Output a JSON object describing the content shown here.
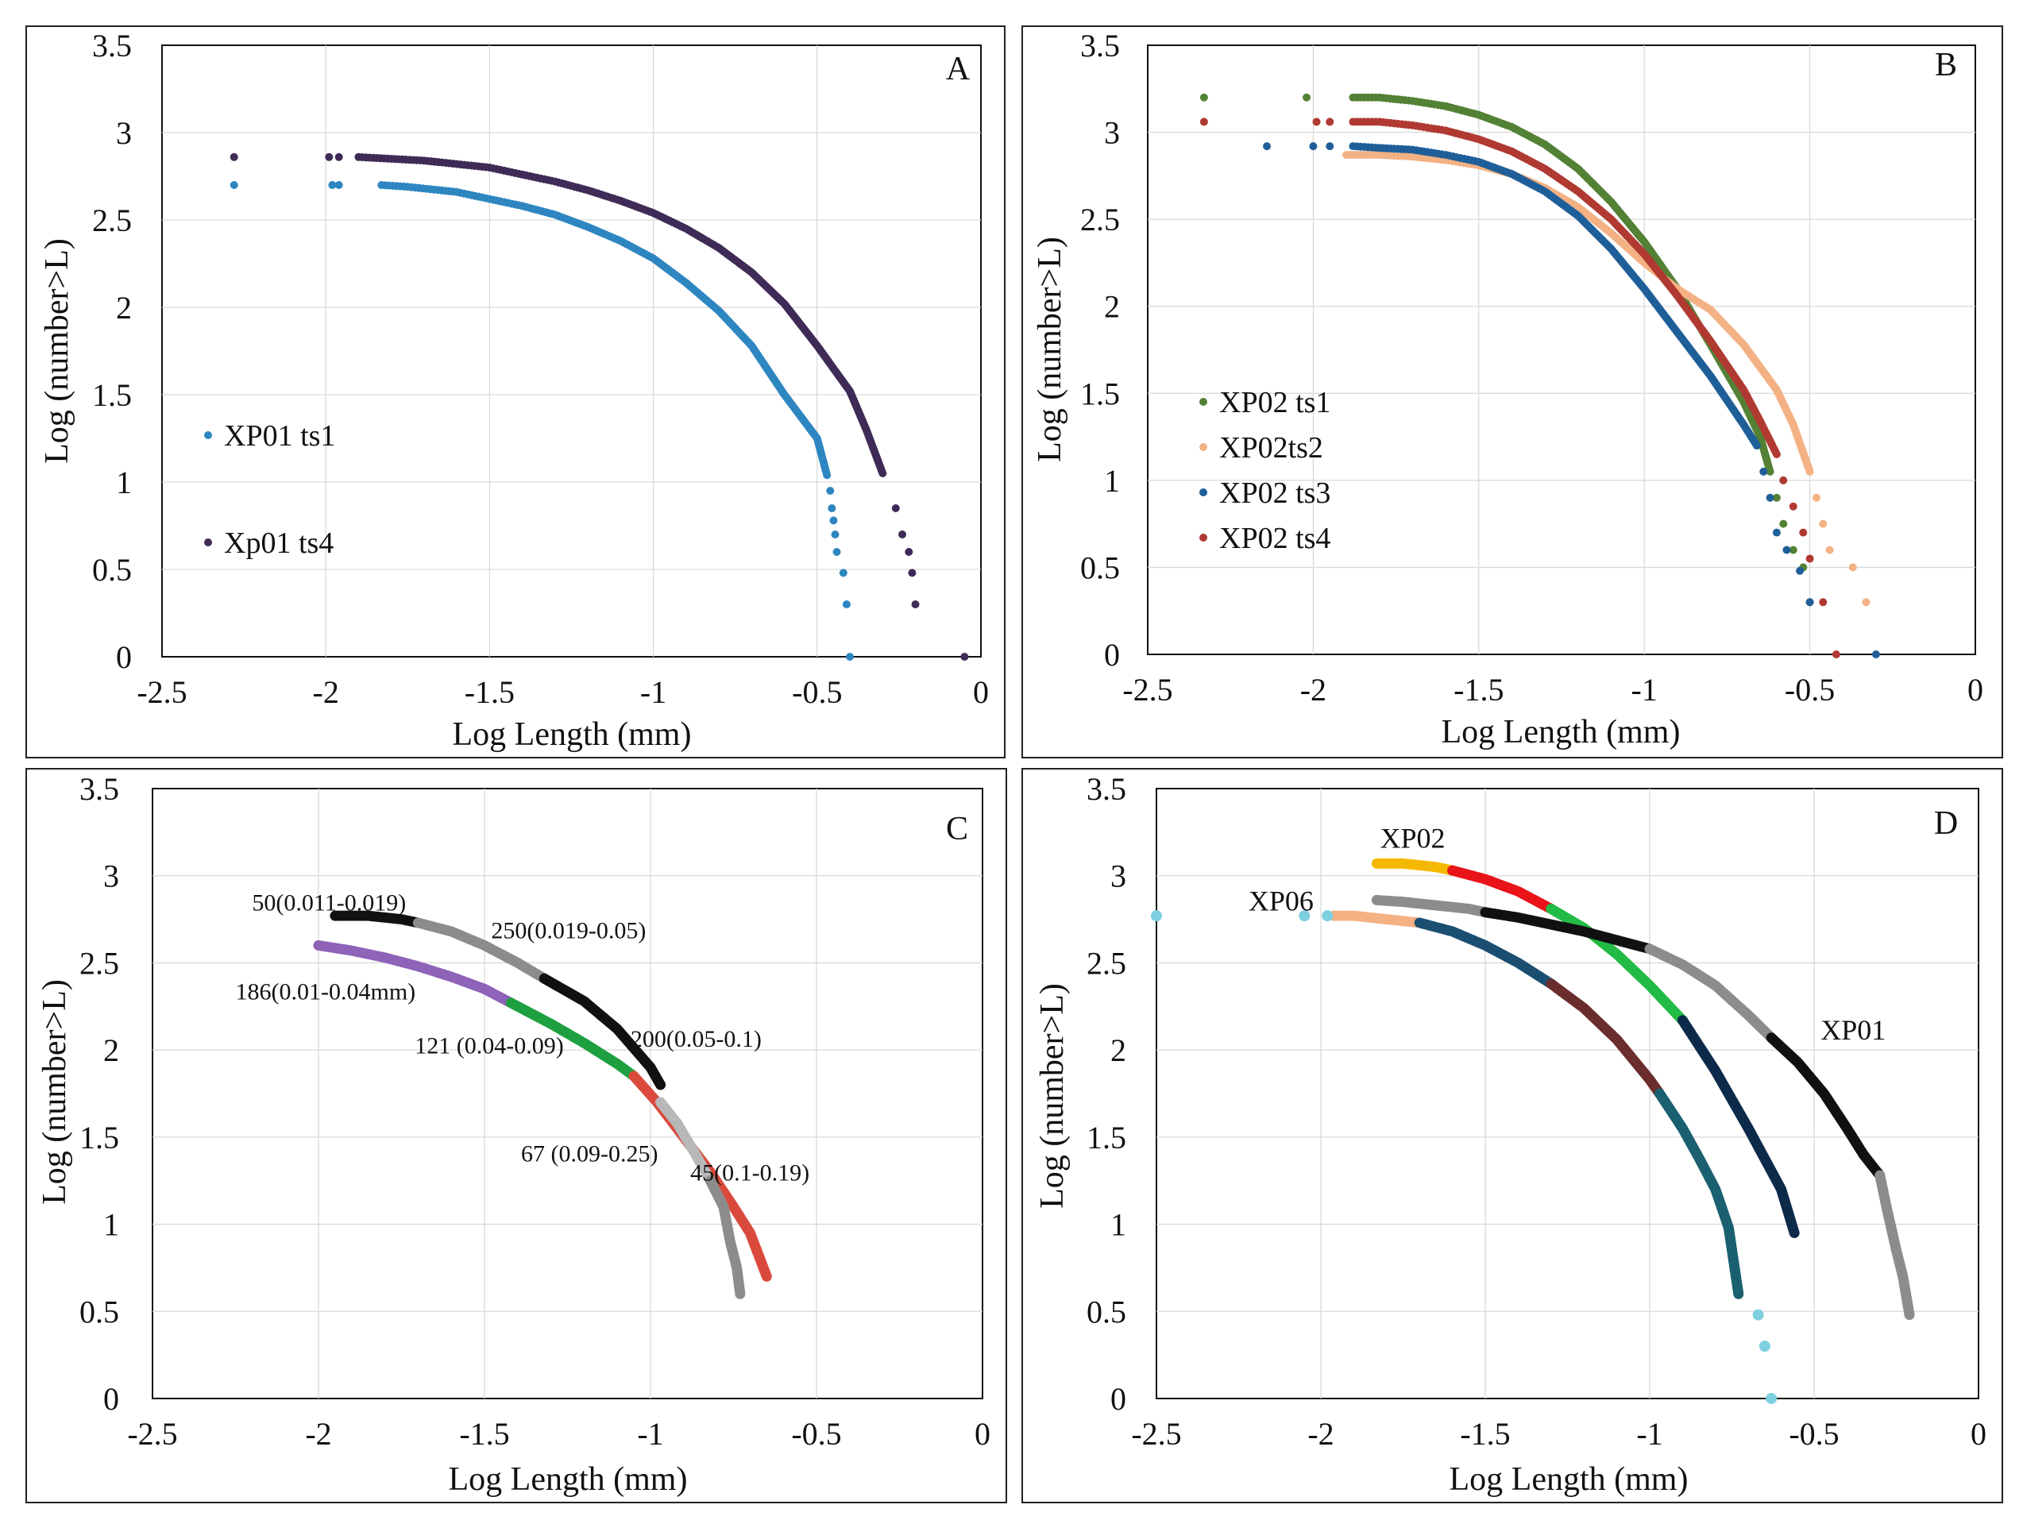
{
  "chart_data": [
    {
      "id": "A",
      "type": "scatter",
      "panel_label": "A",
      "xlabel": "Log Length (mm)",
      "ylabel": "Log (number>L)",
      "xlim": [
        -2.5,
        0
      ],
      "ylim": [
        0,
        3.5
      ],
      "x_ticks": [
        -2.5,
        -2,
        -1.5,
        -1,
        -0.5,
        0
      ],
      "y_ticks": [
        0,
        0.5,
        1,
        1.5,
        2,
        2.5,
        3,
        3.5
      ],
      "x_tick_labels": [
        "-2.5",
        "-2",
        "-1.5",
        "-1",
        "-0.5",
        "0"
      ],
      "y_tick_labels": [
        "0",
        "0.5",
        "1",
        "1.5",
        "2",
        "2.5",
        "3",
        "3.5"
      ],
      "legend_position": "left",
      "series": [
        {
          "name": "XP01 ts1",
          "color": "#2e86c1",
          "curve_x": [
            -1.83,
            -1.75,
            -1.6,
            -1.5,
            -1.4,
            -1.3,
            -1.2,
            -1.1,
            -1.0,
            -0.9,
            -0.8,
            -0.7,
            -0.6,
            -0.5,
            -0.47
          ],
          "curve_y": [
            2.7,
            2.69,
            2.66,
            2.62,
            2.58,
            2.53,
            2.46,
            2.38,
            2.28,
            2.14,
            1.98,
            1.78,
            1.5,
            1.25,
            1.04
          ],
          "extra_points": [
            [
              -2.28,
              2.7
            ],
            [
              -1.98,
              2.7
            ],
            [
              -1.96,
              2.7
            ],
            [
              -0.46,
              0.95
            ],
            [
              -0.455,
              0.85
            ],
            [
              -0.45,
              0.78
            ],
            [
              -0.445,
              0.7
            ],
            [
              -0.44,
              0.6
            ],
            [
              -0.42,
              0.48
            ],
            [
              -0.41,
              0.3
            ],
            [
              -0.4,
              0.0
            ]
          ]
        },
        {
          "name": "Xp01 ts4",
          "color": "#3f2b56",
          "curve_x": [
            -1.9,
            -1.8,
            -1.7,
            -1.6,
            -1.5,
            -1.4,
            -1.3,
            -1.2,
            -1.1,
            -1.0,
            -0.9,
            -0.8,
            -0.7,
            -0.6,
            -0.5,
            -0.4,
            -0.35,
            -0.3
          ],
          "curve_y": [
            2.86,
            2.85,
            2.84,
            2.82,
            2.8,
            2.76,
            2.72,
            2.67,
            2.61,
            2.54,
            2.45,
            2.34,
            2.2,
            2.02,
            1.78,
            1.52,
            1.3,
            1.05
          ],
          "extra_points": [
            [
              -2.28,
              2.86
            ],
            [
              -1.99,
              2.86
            ],
            [
              -1.96,
              2.86
            ],
            [
              -0.26,
              0.85
            ],
            [
              -0.24,
              0.7
            ],
            [
              -0.22,
              0.6
            ],
            [
              -0.21,
              0.48
            ],
            [
              -0.2,
              0.3
            ],
            [
              -0.05,
              0.0
            ]
          ]
        }
      ]
    },
    {
      "id": "B",
      "type": "scatter",
      "panel_label": "B",
      "xlabel": "Log Length (mm)",
      "ylabel": "Log (number>L)",
      "xlim": [
        -2.5,
        0
      ],
      "ylim": [
        0,
        3.5
      ],
      "x_ticks": [
        -2.5,
        -2,
        -1.5,
        -1,
        -0.5,
        0
      ],
      "y_ticks": [
        0,
        0.5,
        1,
        1.5,
        2,
        2.5,
        3,
        3.5
      ],
      "x_tick_labels": [
        "-2.5",
        "-2",
        "-1.5",
        "-1",
        "-0.5",
        "0"
      ],
      "y_tick_labels": [
        "0",
        "0.5",
        "1",
        "1.5",
        "2",
        "2.5",
        "3",
        "3.5"
      ],
      "legend_position": "left",
      "series": [
        {
          "name": "XP02 ts1",
          "color": "#538135",
          "curve_x": [
            -1.88,
            -1.8,
            -1.7,
            -1.6,
            -1.5,
            -1.4,
            -1.3,
            -1.2,
            -1.1,
            -1.0,
            -0.9,
            -0.8,
            -0.7,
            -0.65,
            -0.62
          ],
          "curve_y": [
            3.2,
            3.2,
            3.18,
            3.15,
            3.1,
            3.03,
            2.93,
            2.79,
            2.6,
            2.37,
            2.1,
            1.78,
            1.45,
            1.25,
            1.05
          ],
          "extra_points": [
            [
              -2.33,
              3.2
            ],
            [
              -2.02,
              3.2
            ],
            [
              -1.6,
              3.15
            ],
            [
              -0.6,
              0.9
            ],
            [
              -0.58,
              0.75
            ],
            [
              -0.55,
              0.6
            ],
            [
              -0.52,
              0.5
            ],
            [
              -0.5,
              0.3
            ]
          ]
        },
        {
          "name": "XP02ts2",
          "color": "#f4b183",
          "curve_x": [
            -1.9,
            -1.8,
            -1.7,
            -1.6,
            -1.5,
            -1.4,
            -1.3,
            -1.2,
            -1.1,
            -1.0,
            -0.9,
            -0.8,
            -0.7,
            -0.6,
            -0.55,
            -0.5
          ],
          "curve_y": [
            2.87,
            2.87,
            2.86,
            2.84,
            2.81,
            2.76,
            2.68,
            2.57,
            2.42,
            2.25,
            2.1,
            1.98,
            1.78,
            1.52,
            1.32,
            1.05
          ],
          "extra_points": [
            [
              -0.48,
              0.9
            ],
            [
              -0.46,
              0.75
            ],
            [
              -0.44,
              0.6
            ],
            [
              -0.37,
              0.5
            ],
            [
              -0.33,
              0.3
            ]
          ]
        },
        {
          "name": "XP02 ts3",
          "color": "#1f5f99",
          "curve_x": [
            -1.88,
            -1.8,
            -1.7,
            -1.6,
            -1.5,
            -1.4,
            -1.3,
            -1.2,
            -1.1,
            -1.0,
            -0.9,
            -0.8,
            -0.7,
            -0.66
          ],
          "curve_y": [
            2.92,
            2.91,
            2.9,
            2.87,
            2.83,
            2.76,
            2.66,
            2.52,
            2.33,
            2.1,
            1.85,
            1.6,
            1.32,
            1.2
          ],
          "extra_points": [
            [
              -2.14,
              2.92
            ],
            [
              -2.0,
              2.92
            ],
            [
              -1.95,
              2.92
            ],
            [
              -0.64,
              1.05
            ],
            [
              -0.62,
              0.9
            ],
            [
              -0.6,
              0.7
            ],
            [
              -0.57,
              0.6
            ],
            [
              -0.53,
              0.48
            ],
            [
              -0.5,
              0.3
            ],
            [
              -0.3,
              0.0
            ]
          ]
        },
        {
          "name": "XP02 ts4",
          "color": "#b03a32",
          "curve_x": [
            -1.88,
            -1.8,
            -1.7,
            -1.6,
            -1.5,
            -1.4,
            -1.3,
            -1.2,
            -1.1,
            -1.0,
            -0.9,
            -0.8,
            -0.7,
            -0.65,
            -0.6
          ],
          "curve_y": [
            3.06,
            3.06,
            3.04,
            3.01,
            2.96,
            2.89,
            2.79,
            2.66,
            2.5,
            2.3,
            2.06,
            1.8,
            1.52,
            1.34,
            1.15
          ],
          "extra_points": [
            [
              -2.33,
              3.06
            ],
            [
              -1.99,
              3.06
            ],
            [
              -1.95,
              3.06
            ],
            [
              -0.58,
              1.0
            ],
            [
              -0.55,
              0.85
            ],
            [
              -0.52,
              0.7
            ],
            [
              -0.5,
              0.55
            ],
            [
              -0.46,
              0.3
            ],
            [
              -0.42,
              0.0
            ]
          ]
        }
      ]
    },
    {
      "id": "C",
      "type": "scatter",
      "panel_label": "C",
      "xlabel": "Log Length (mm)",
      "ylabel": "Log (number>L)",
      "xlim": [
        -2.5,
        0
      ],
      "ylim": [
        0,
        3.5
      ],
      "x_ticks": [
        -2.5,
        -2,
        -1.5,
        -1,
        -0.5,
        0
      ],
      "y_ticks": [
        0,
        0.5,
        1,
        1.5,
        2,
        2.5,
        3,
        3.5
      ],
      "x_tick_labels": [
        "-2.5",
        "-2",
        "-1.5",
        "-1",
        "-0.5",
        "0"
      ],
      "y_tick_labels": [
        "0",
        "0.5",
        "1",
        "1.5",
        "2",
        "2.5",
        "3",
        "3.5"
      ],
      "segments": [
        {
          "color": "#111111",
          "x": [
            -1.95,
            -1.85,
            -1.75,
            -1.7
          ],
          "y": [
            2.77,
            2.77,
            2.75,
            2.73
          ]
        },
        {
          "color": "#8c8c8c",
          "x": [
            -1.7,
            -1.6,
            -1.5,
            -1.4,
            -1.32
          ],
          "y": [
            2.73,
            2.68,
            2.6,
            2.5,
            2.41
          ]
        },
        {
          "color": "#111111",
          "x": [
            -1.32,
            -1.2,
            -1.1,
            -1.0,
            -0.97
          ],
          "y": [
            2.41,
            2.28,
            2.12,
            1.9,
            1.8
          ]
        },
        {
          "color": "#8e63b8",
          "x": [
            -2.0,
            -1.9,
            -1.8,
            -1.7,
            -1.6,
            -1.5,
            -1.42
          ],
          "y": [
            2.6,
            2.57,
            2.53,
            2.48,
            2.42,
            2.35,
            2.27
          ]
        },
        {
          "color": "#1fa040",
          "x": [
            -1.42,
            -1.3,
            -1.2,
            -1.1,
            -1.05
          ],
          "y": [
            2.27,
            2.15,
            2.04,
            1.92,
            1.85
          ]
        },
        {
          "color": "#d94a3d",
          "x": [
            -1.05,
            -0.98,
            -0.9,
            -0.82,
            -0.75,
            -0.7,
            -0.65
          ],
          "y": [
            1.85,
            1.7,
            1.5,
            1.3,
            1.1,
            0.95,
            0.7
          ]
        },
        {
          "color": "#b8b8b8",
          "x": [
            -0.97,
            -0.92,
            -0.87,
            -0.82
          ],
          "y": [
            1.7,
            1.58,
            1.42,
            1.25
          ]
        },
        {
          "color": "#8c8c8c",
          "x": [
            -0.82,
            -0.78,
            -0.76,
            -0.74,
            -0.73
          ],
          "y": [
            1.25,
            1.1,
            0.9,
            0.75,
            0.6
          ]
        }
      ],
      "annotations": [
        {
          "text": "50(0.011-0.019)",
          "x": -2.2,
          "y": 2.8
        },
        {
          "text": "250(0.019-0.05)",
          "x": -1.48,
          "y": 2.64
        },
        {
          "text": "186(0.01-0.04mm)",
          "x": -2.25,
          "y": 2.29
        },
        {
          "text": "121 (0.04-0.09)",
          "x": -1.71,
          "y": 1.98
        },
        {
          "text": "200(0.05-0.1)",
          "x": -1.06,
          "y": 2.02
        },
        {
          "text": "67 (0.09-0.25)",
          "x": -1.39,
          "y": 1.36
        },
        {
          "text": "45(0.1-0.19)",
          "x": -0.88,
          "y": 1.25
        }
      ]
    },
    {
      "id": "D",
      "type": "scatter",
      "panel_label": "D",
      "xlabel": "Log Length (mm)",
      "ylabel": "Log (number>L)",
      "xlim": [
        -2.5,
        0
      ],
      "ylim": [
        0,
        3.5
      ],
      "x_ticks": [
        -2.5,
        -2,
        -1.5,
        -1,
        -0.5,
        0
      ],
      "y_ticks": [
        0,
        0.5,
        1,
        1.5,
        2,
        2.5,
        3,
        3.5
      ],
      "x_tick_labels": [
        "-2.5",
        "-2",
        "-1.5",
        "-1",
        "-0.5",
        "0"
      ],
      "y_tick_labels": [
        "0",
        "0.5",
        "1",
        "1.5",
        "2",
        "2.5",
        "3",
        "3.5"
      ],
      "series_labels": [
        {
          "text": "XP02",
          "x": -1.82,
          "y": 3.16
        },
        {
          "text": "XP06",
          "x": -2.22,
          "y": 2.8
        },
        {
          "text": "XP01",
          "x": -0.48,
          "y": 2.06
        }
      ],
      "segments": [
        {
          "color": "#f5b800",
          "x": [
            -1.83,
            -1.75,
            -1.65,
            -1.6
          ],
          "y": [
            3.07,
            3.07,
            3.05,
            3.03
          ]
        },
        {
          "color": "#e8141a",
          "x": [
            -1.6,
            -1.5,
            -1.4,
            -1.3
          ],
          "y": [
            3.03,
            2.98,
            2.91,
            2.81
          ]
        },
        {
          "color": "#22bb45",
          "x": [
            -1.3,
            -1.2,
            -1.1,
            -1.0,
            -0.9
          ],
          "y": [
            2.81,
            2.7,
            2.55,
            2.37,
            2.17
          ]
        },
        {
          "color": "#0d2a4a",
          "x": [
            -0.9,
            -0.8,
            -0.7,
            -0.6,
            -0.56
          ],
          "y": [
            2.17,
            1.88,
            1.55,
            1.2,
            0.95
          ]
        },
        {
          "color": "#8c8c8c",
          "x": [
            -1.83,
            -1.75,
            -1.65,
            -1.55,
            -1.5
          ],
          "y": [
            2.86,
            2.85,
            2.83,
            2.81,
            2.79
          ]
        },
        {
          "color": "#111111",
          "x": [
            -1.5,
            -1.4,
            -1.3,
            -1.2,
            -1.1,
            -1.0
          ],
          "y": [
            2.79,
            2.76,
            2.72,
            2.68,
            2.63,
            2.58
          ]
        },
        {
          "color": "#8c8c8c",
          "x": [
            -1.0,
            -0.9,
            -0.8,
            -0.7,
            -0.63
          ],
          "y": [
            2.58,
            2.49,
            2.37,
            2.2,
            2.07
          ]
        },
        {
          "color": "#111111",
          "x": [
            -0.63,
            -0.55,
            -0.47,
            -0.4,
            -0.35,
            -0.3
          ],
          "y": [
            2.07,
            1.93,
            1.75,
            1.55,
            1.4,
            1.28
          ]
        },
        {
          "color": "#8c8c8c",
          "x": [
            -0.3,
            -0.28,
            -0.25,
            -0.23,
            -0.21
          ],
          "y": [
            1.28,
            1.1,
            0.85,
            0.7,
            0.48
          ]
        },
        {
          "color": "#f4b183",
          "x": [
            -1.96,
            -1.9,
            -1.8,
            -1.7
          ],
          "y": [
            2.77,
            2.77,
            2.75,
            2.73
          ]
        },
        {
          "color": "#1b4f72",
          "x": [
            -1.7,
            -1.6,
            -1.5,
            -1.4,
            -1.3
          ],
          "y": [
            2.73,
            2.68,
            2.6,
            2.5,
            2.38
          ]
        },
        {
          "color": "#6b2d2d",
          "x": [
            -1.3,
            -1.2,
            -1.1,
            -1.0,
            -0.97
          ],
          "y": [
            2.38,
            2.24,
            2.06,
            1.83,
            1.75
          ]
        },
        {
          "color": "#1a6070",
          "x": [
            -0.97,
            -0.9,
            -0.85,
            -0.8,
            -0.76,
            -0.73
          ],
          "y": [
            1.75,
            1.55,
            1.38,
            1.2,
            0.98,
            0.6
          ]
        }
      ],
      "extra_points": [
        {
          "color": "#7ecfe0",
          "points": [
            [
              -2.5,
              2.77
            ],
            [
              -2.05,
              2.77
            ],
            [
              -1.98,
              2.77
            ],
            [
              -0.67,
              0.48
            ],
            [
              -0.65,
              0.3
            ],
            [
              -0.63,
              0.0
            ]
          ]
        }
      ]
    }
  ]
}
